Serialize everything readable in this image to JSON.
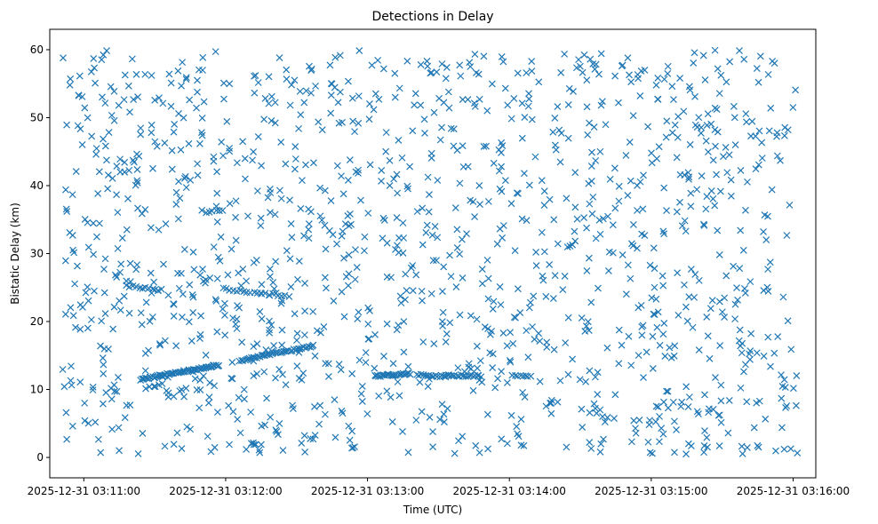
{
  "chart_data": {
    "type": "scatter",
    "title": "Detections in Delay",
    "xlabel": "Time (UTC)",
    "ylabel": "Bistatic Delay (km)",
    "x_unit": "minutes after 2025-12-31 03:10:00 UTC",
    "xlim": [
      0.76,
      6.16
    ],
    "ylim": [
      -3.0,
      63.0
    ],
    "xticks": [
      {
        "value": 1,
        "label": "2025-12-31 03:11:00"
      },
      {
        "value": 2,
        "label": "2025-12-31 03:12:00"
      },
      {
        "value": 3,
        "label": "2025-12-31 03:13:00"
      },
      {
        "value": 4,
        "label": "2025-12-31 03:14:00"
      },
      {
        "value": 5,
        "label": "2025-12-31 03:15:00"
      },
      {
        "value": 6,
        "label": "2025-12-31 03:16:00"
      }
    ],
    "yticks": [
      0,
      10,
      20,
      30,
      40,
      50,
      60
    ],
    "marker": "x",
    "color": "#1f77b4",
    "grid": false,
    "x_range_data": [
      0.85,
      6.03
    ],
    "y_range_data": [
      0.5,
      60.0
    ],
    "random_point_count": 1350,
    "track_segments": [
      {
        "x0": 1.4,
        "y0": 11.5,
        "x1": 1.95,
        "y1": 13.6,
        "count": 60
      },
      {
        "x0": 2.1,
        "y0": 14.3,
        "x1": 2.62,
        "y1": 16.4,
        "count": 45
      },
      {
        "x0": 1.3,
        "y0": 25.2,
        "x1": 1.55,
        "y1": 24.6,
        "count": 12
      },
      {
        "x0": 1.98,
        "y0": 24.8,
        "x1": 2.25,
        "y1": 24.2,
        "count": 12
      },
      {
        "x0": 2.25,
        "y0": 24.1,
        "x1": 2.45,
        "y1": 23.8,
        "count": 8
      },
      {
        "x0": 3.05,
        "y0": 12.0,
        "x1": 3.3,
        "y1": 12.3,
        "count": 25
      },
      {
        "x0": 3.35,
        "y0": 12.2,
        "x1": 3.55,
        "y1": 11.9,
        "count": 15
      },
      {
        "x0": 3.55,
        "y0": 12.1,
        "x1": 3.8,
        "y1": 12.0,
        "count": 20
      },
      {
        "x0": 4.02,
        "y0": 12.0,
        "x1": 4.15,
        "y1": 11.9,
        "count": 8
      },
      {
        "x0": 1.86,
        "y0": 36.1,
        "x1": 1.98,
        "y1": 36.3,
        "count": 6
      }
    ]
  }
}
